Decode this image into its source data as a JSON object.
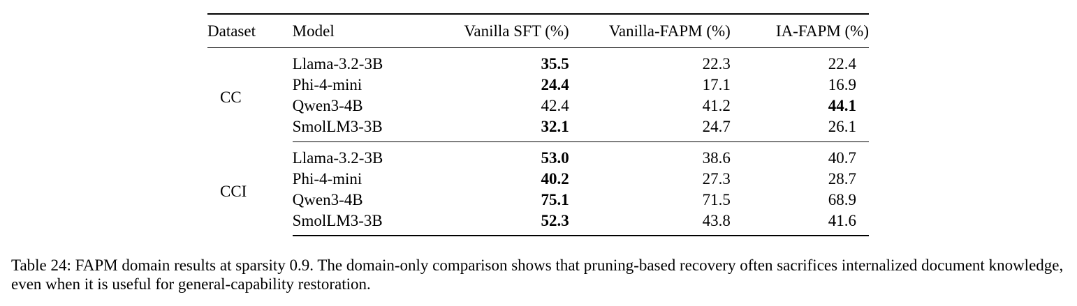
{
  "table": {
    "headers": [
      "Dataset",
      "Model",
      "Vanilla SFT (%)",
      "Vanilla-FAPM (%)",
      "IA-FAPM (%)"
    ],
    "groups": [
      {
        "dataset": "CC",
        "rows": [
          {
            "model": "Llama-3.2-3B",
            "vanilla_sft": "35.5",
            "vanilla_fapm": "22.3",
            "ia_fapm": "22.4",
            "best": "vanilla_sft"
          },
          {
            "model": "Phi-4-mini",
            "vanilla_sft": "24.4",
            "vanilla_fapm": "17.1",
            "ia_fapm": "16.9",
            "best": "vanilla_sft"
          },
          {
            "model": "Qwen3-4B",
            "vanilla_sft": "42.4",
            "vanilla_fapm": "41.2",
            "ia_fapm": "44.1",
            "best": "ia_fapm"
          },
          {
            "model": "SmolLM3-3B",
            "vanilla_sft": "32.1",
            "vanilla_fapm": "24.7",
            "ia_fapm": "26.1",
            "best": "vanilla_sft"
          }
        ]
      },
      {
        "dataset": "CCI",
        "rows": [
          {
            "model": "Llama-3.2-3B",
            "vanilla_sft": "53.0",
            "vanilla_fapm": "38.6",
            "ia_fapm": "40.7",
            "best": "vanilla_sft"
          },
          {
            "model": "Phi-4-mini",
            "vanilla_sft": "40.2",
            "vanilla_fapm": "27.3",
            "ia_fapm": "28.7",
            "best": "vanilla_sft"
          },
          {
            "model": "Qwen3-4B",
            "vanilla_sft": "75.1",
            "vanilla_fapm": "71.5",
            "ia_fapm": "68.9",
            "best": "vanilla_sft"
          },
          {
            "model": "SmolLM3-3B",
            "vanilla_sft": "52.3",
            "vanilla_fapm": "43.8",
            "ia_fapm": "41.6",
            "best": "vanilla_sft"
          }
        ]
      }
    ]
  },
  "caption": "Table 24: FAPM domain results at sparsity 0.9. The domain-only comparison shows that pruning-based recovery often sacrifices internalized document knowledge, even when it is useful for general-capability restoration."
}
